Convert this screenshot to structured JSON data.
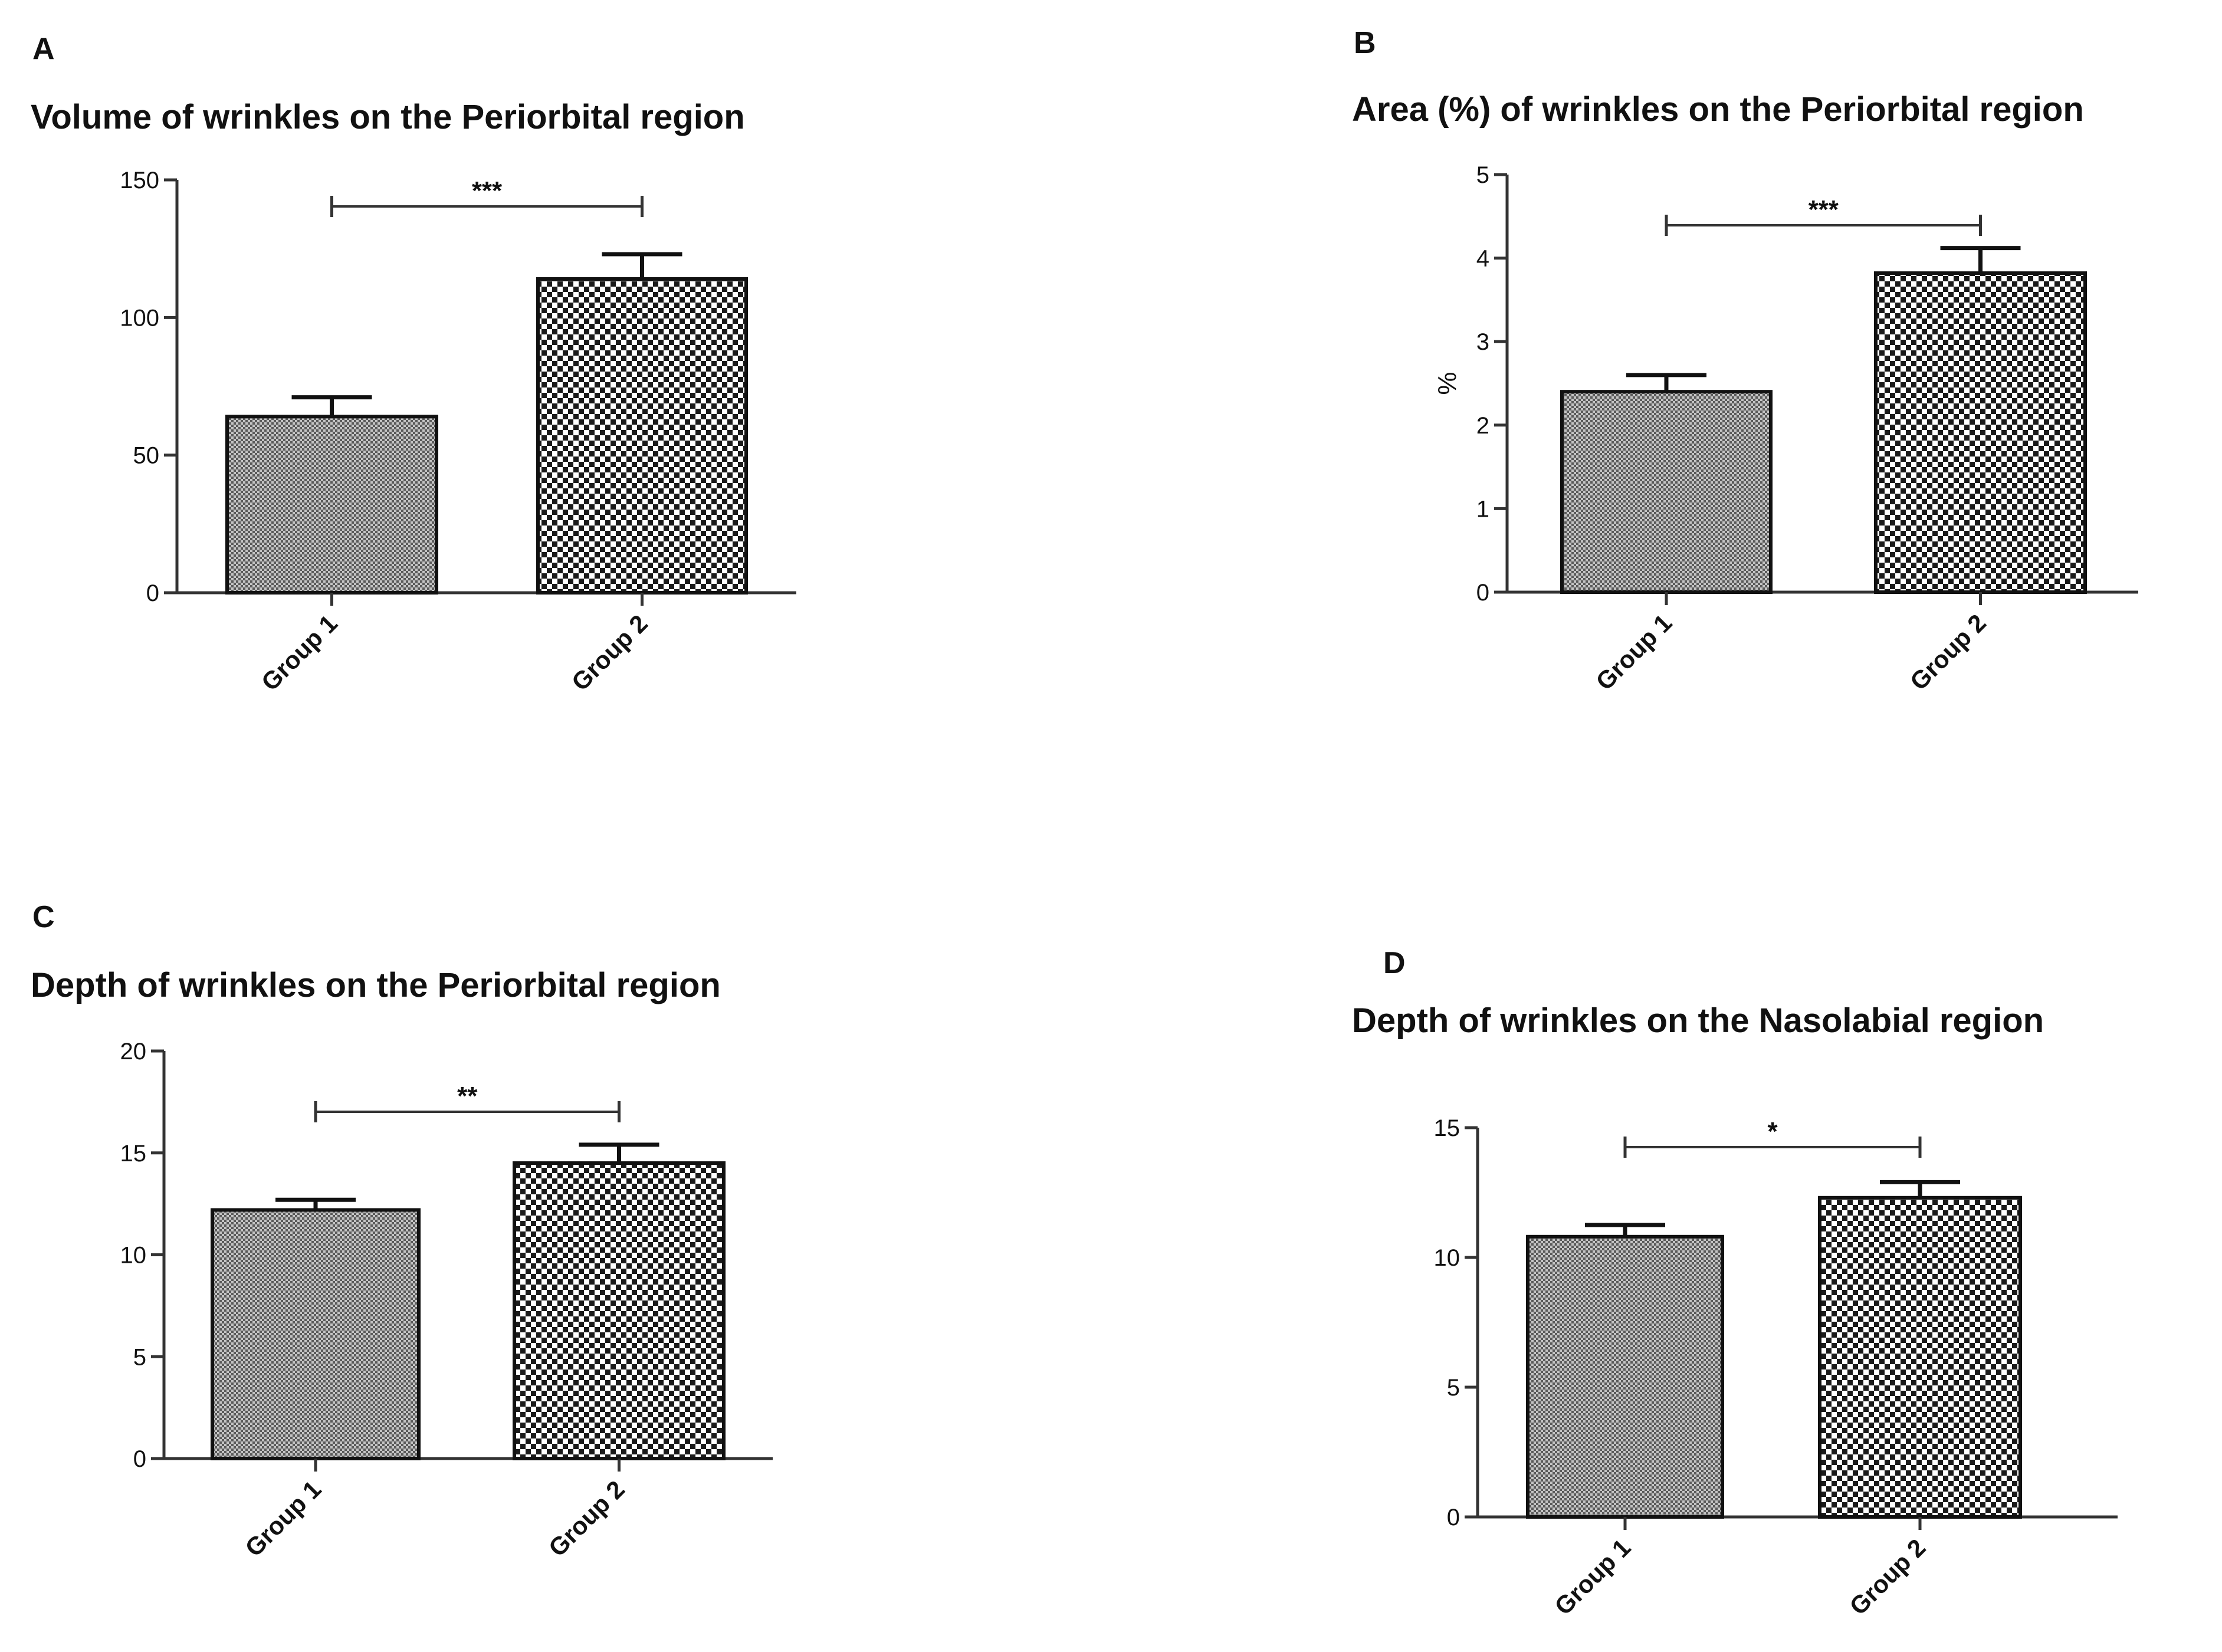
{
  "chart_data": [
    {
      "type": "bar",
      "panel": "A",
      "title": "Volume of wrinkles on the Periorbital region",
      "ylabel": "",
      "categories": [
        "Group 1",
        "Group 2"
      ],
      "values": [
        64,
        114
      ],
      "errors": [
        7,
        9
      ],
      "ylim": [
        0,
        150
      ],
      "yticks": [
        0,
        50,
        100,
        150
      ],
      "significance": "***",
      "patterns": [
        "fine",
        "checker"
      ]
    },
    {
      "type": "bar",
      "panel": "B",
      "title": "Area (%) of wrinkles on the Periorbital region",
      "ylabel": "%",
      "categories": [
        "Group 1",
        "Group 2"
      ],
      "values": [
        2.4,
        3.82
      ],
      "errors": [
        0.2,
        0.3
      ],
      "ylim": [
        0,
        5
      ],
      "yticks": [
        0,
        1,
        2,
        3,
        4,
        5
      ],
      "significance": "***",
      "patterns": [
        "fine",
        "checker"
      ]
    },
    {
      "type": "bar",
      "panel": "C",
      "title": "Depth of wrinkles on the Periorbital region",
      "ylabel": "",
      "categories": [
        "Group 1",
        "Group 2"
      ],
      "values": [
        12.2,
        14.5
      ],
      "errors": [
        0.5,
        0.9
      ],
      "ylim": [
        0,
        20
      ],
      "yticks": [
        0,
        5,
        10,
        15,
        20
      ],
      "significance": "**",
      "patterns": [
        "fine",
        "checker"
      ]
    },
    {
      "type": "bar",
      "panel": "D",
      "title": "Depth of wrinkles on the Nasolabial region",
      "ylabel": "",
      "categories": [
        "Group 1",
        "Group 2"
      ],
      "values": [
        10.8,
        12.3
      ],
      "errors": [
        0.45,
        0.6
      ],
      "ylim": [
        0,
        15
      ],
      "yticks": [
        0,
        5,
        10,
        15
      ],
      "significance": "*",
      "patterns": [
        "fine",
        "checker"
      ]
    }
  ]
}
